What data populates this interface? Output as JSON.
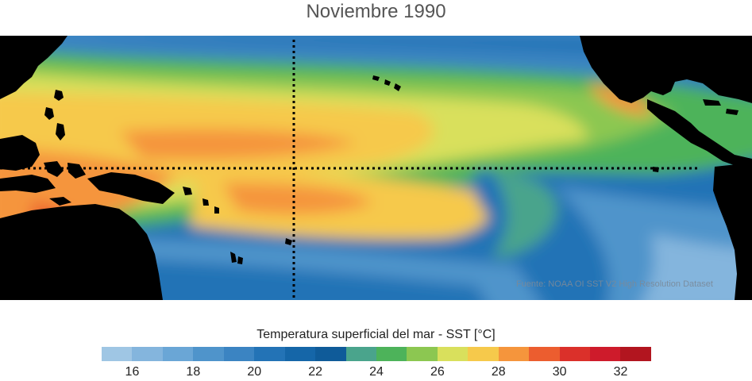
{
  "title": "Noviembre 1990",
  "source_note": "Fuente: NOAA OI SST V2 High Resolution Dataset",
  "colorbar": {
    "label": "Temperatura superficial del mar - SST  [°C]",
    "min": 15,
    "max": 33,
    "colors": [
      "#9fc6e4",
      "#84b5dd",
      "#6aa6d6",
      "#4f94cb",
      "#3b84c2",
      "#2373b6",
      "#1566a8",
      "#0f5b99",
      "#4aa48c",
      "#4db35a",
      "#8cc751",
      "#d9e05c",
      "#f6c94b",
      "#f5953c",
      "#ec5d2f",
      "#db302a",
      "#ce1b2b",
      "#b2151f"
    ],
    "tick_labels": [
      "16",
      "18",
      "20",
      "22",
      "24",
      "26",
      "28",
      "30",
      "32"
    ],
    "tick_values": [
      16,
      18,
      20,
      22,
      24,
      26,
      28,
      30,
      32
    ]
  },
  "map": {
    "land_color": "#000000",
    "grid_color": "#000000",
    "equator_line": "dotted",
    "dateline_line": "dotted"
  }
}
